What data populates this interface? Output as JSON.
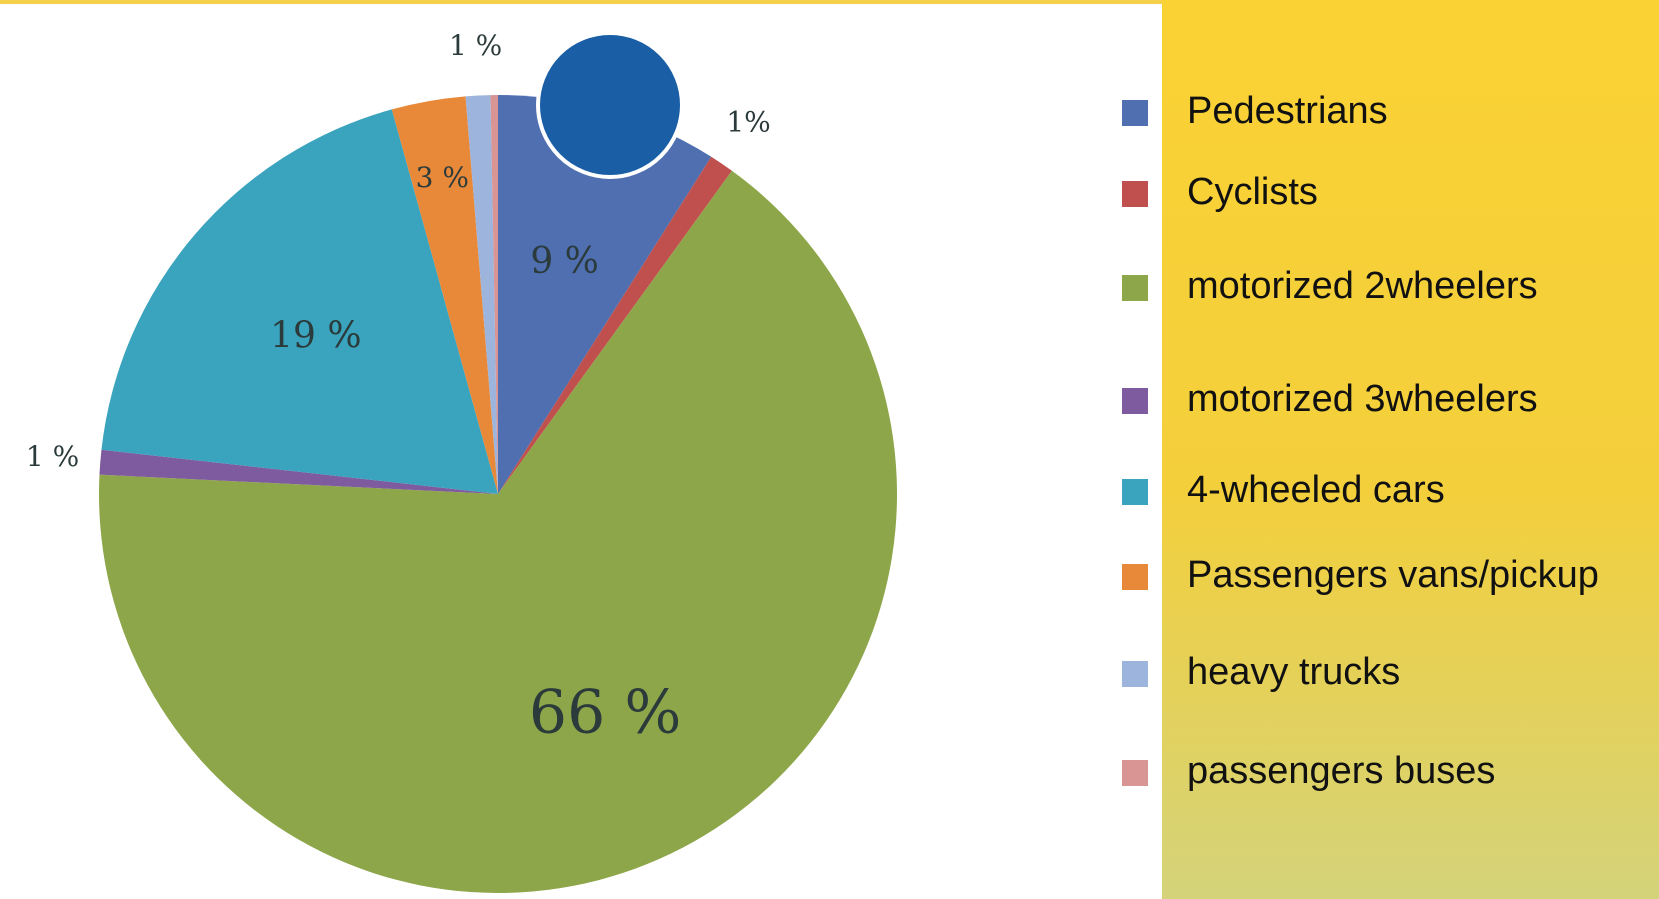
{
  "chart_data": {
    "type": "pie",
    "categories": [
      "Pedestrians",
      "Cyclists",
      "motorized 2wheelers",
      "motorized 3wheelers",
      "4-wheeled cars",
      "Passengers vans/pickup",
      "heavy trucks",
      "passengers buses"
    ],
    "values": [
      9,
      1,
      66,
      1,
      19,
      3,
      1,
      0.3
    ],
    "value_labels": [
      "9 %",
      "1%",
      "66 %",
      "1 %",
      "19 %",
      "3 %",
      "1 %",
      null
    ],
    "colors": [
      "#4f6fb0",
      "#c0504d",
      "#8ea64a",
      "#7e5a9e",
      "#3aa3bd",
      "#e8893a",
      "#9db4dc",
      "#d99594"
    ],
    "legend": "right"
  }
}
